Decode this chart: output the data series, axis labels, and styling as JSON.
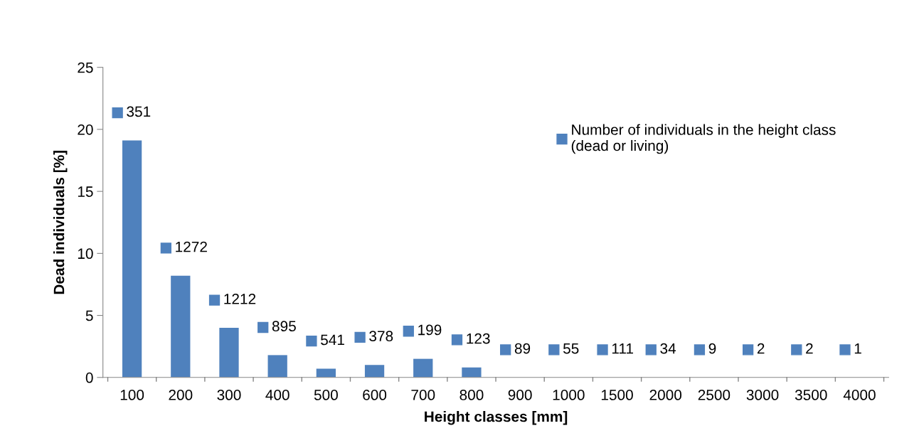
{
  "chart_data": {
    "type": "bar",
    "xlabel": "Height classes [mm]",
    "ylabel": "Dead individuals [%]",
    "categories": [
      "100",
      "200",
      "300",
      "400",
      "500",
      "600",
      "700",
      "800",
      "900",
      "1000",
      "1500",
      "2000",
      "2500",
      "3000",
      "3500",
      "4000"
    ],
    "series": [
      {
        "name": "Number of individuals in the height class\n(dead or living)",
        "color": "#4f81bd",
        "values": [
          19.1,
          8.2,
          4.0,
          1.8,
          0.7,
          1.0,
          1.5,
          0.8,
          0,
          0,
          0,
          0,
          0,
          0,
          0,
          0
        ]
      }
    ],
    "annotations": [
      {
        "text": "351",
        "x": "100",
        "y": 19.1
      },
      {
        "text": "1272",
        "x": "200",
        "y": 8.2
      },
      {
        "text": "1212",
        "x": "300",
        "y": 4.0
      },
      {
        "text": "895",
        "x": "400",
        "y": 1.8
      },
      {
        "text": "541",
        "x": "500",
        "y": 0.7
      },
      {
        "text": "378",
        "x": "600",
        "y": 1.0
      },
      {
        "text": "199",
        "x": "700",
        "y": 1.5
      },
      {
        "text": "123",
        "x": "800",
        "y": 0.8
      },
      {
        "text": "89",
        "x": "900",
        "y": 0
      },
      {
        "text": "55",
        "x": "1000",
        "y": 0
      },
      {
        "text": "111",
        "x": "1500",
        "y": 0
      },
      {
        "text": "34",
        "x": "2000",
        "y": 0
      },
      {
        "text": "9",
        "x": "2500",
        "y": 0
      },
      {
        "text": "2",
        "x": "3000",
        "y": 0
      },
      {
        "text": "2",
        "x": "3500",
        "y": 0
      },
      {
        "text": "1",
        "x": "4000",
        "y": 0
      }
    ],
    "ylim": [
      0,
      25
    ],
    "yticks": [
      0,
      5,
      10,
      15,
      20,
      25
    ],
    "grid": false,
    "legend": "top right"
  }
}
